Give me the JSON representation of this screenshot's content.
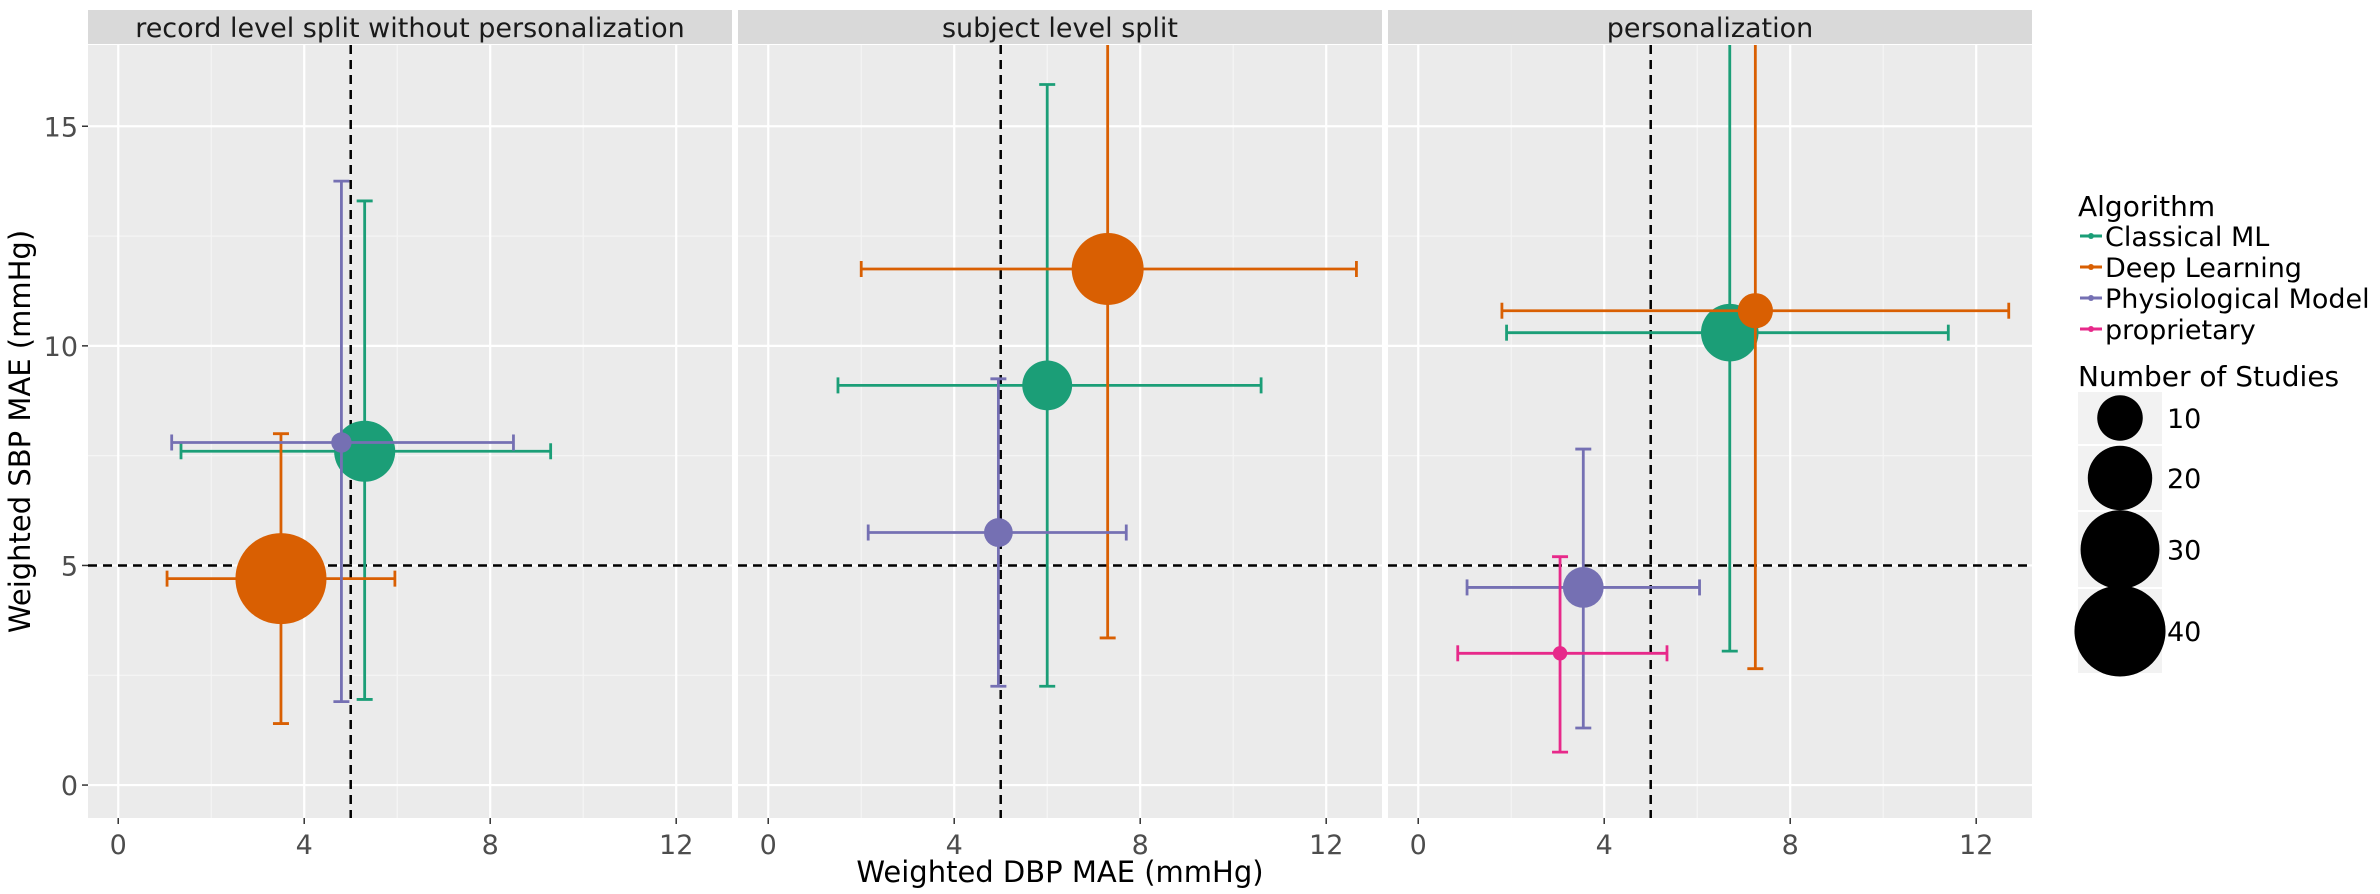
{
  "chart_data": {
    "type": "scatter",
    "xlabel": "Weighted DBP MAE (mmHg)",
    "ylabel": "Weighted SBP MAE (mmHg)",
    "xlim": [
      -0.65,
      13.2
    ],
    "ylim": [
      -0.75,
      16.85
    ],
    "x_ticks": [
      0,
      4,
      8,
      12
    ],
    "y_ticks": [
      0,
      5,
      10,
      15
    ],
    "reference_lines": {
      "x": 5,
      "y": 5,
      "style": "dashed"
    },
    "grid": true,
    "panels": [
      {
        "title": "record level split without personalization"
      },
      {
        "title": "subject level split"
      },
      {
        "title": "personalization"
      }
    ],
    "series": [
      {
        "name": "Classical ML",
        "color": "#1b9e77",
        "points": [
          {
            "panel": 0,
            "x": 5.3,
            "y": 7.6,
            "x_min": 1.35,
            "x_max": 9.3,
            "y_min": 1.95,
            "y_max": 13.3,
            "n_studies": 18
          },
          {
            "panel": 1,
            "x": 6.0,
            "y": 9.1,
            "x_min": 1.5,
            "x_max": 10.6,
            "y_min": 2.25,
            "y_max": 15.95,
            "n_studies": 12
          },
          {
            "panel": 2,
            "x": 6.7,
            "y": 10.3,
            "x_min": 1.9,
            "x_max": 11.4,
            "y_min": 3.05,
            "y_max": 17.5,
            "n_studies": 16
          }
        ]
      },
      {
        "name": "Deep Learning",
        "color": "#d95f02",
        "points": [
          {
            "panel": 0,
            "x": 3.5,
            "y": 4.7,
            "x_min": 1.05,
            "x_max": 5.95,
            "y_min": 1.4,
            "y_max": 8.0,
            "n_studies": 40
          },
          {
            "panel": 1,
            "x": 7.3,
            "y": 11.75,
            "x_min": 2.0,
            "x_max": 12.65,
            "y_min": 3.35,
            "y_max": 17.5,
            "n_studies": 25
          },
          {
            "panel": 2,
            "x": 7.25,
            "y": 10.8,
            "x_min": 1.8,
            "x_max": 12.7,
            "y_min": 2.65,
            "y_max": 17.5,
            "n_studies": 6
          }
        ]
      },
      {
        "name": "Physiological Model",
        "color": "#7570b3",
        "points": [
          {
            "panel": 0,
            "x": 4.8,
            "y": 7.8,
            "x_min": 1.15,
            "x_max": 8.5,
            "y_min": 1.9,
            "y_max": 13.75,
            "n_studies": 2
          },
          {
            "panel": 1,
            "x": 4.95,
            "y": 5.75,
            "x_min": 2.15,
            "x_max": 7.7,
            "y_min": 2.25,
            "y_max": 9.25,
            "n_studies": 4
          },
          {
            "panel": 2,
            "x": 3.55,
            "y": 4.5,
            "x_min": 1.05,
            "x_max": 6.05,
            "y_min": 1.3,
            "y_max": 7.65,
            "n_studies": 8
          }
        ]
      },
      {
        "name": "proprietary",
        "color": "#e7298a",
        "points": [
          {
            "panel": 2,
            "x": 3.05,
            "y": 3.0,
            "x_min": 0.85,
            "x_max": 5.35,
            "y_min": 0.75,
            "y_max": 5.2,
            "n_studies": 1
          }
        ]
      }
    ],
    "legend": {
      "placement": "right",
      "color_title": "Algorithm",
      "size_title": "Number of Studies",
      "size_breaks": [
        10,
        20,
        30,
        40
      ]
    }
  }
}
